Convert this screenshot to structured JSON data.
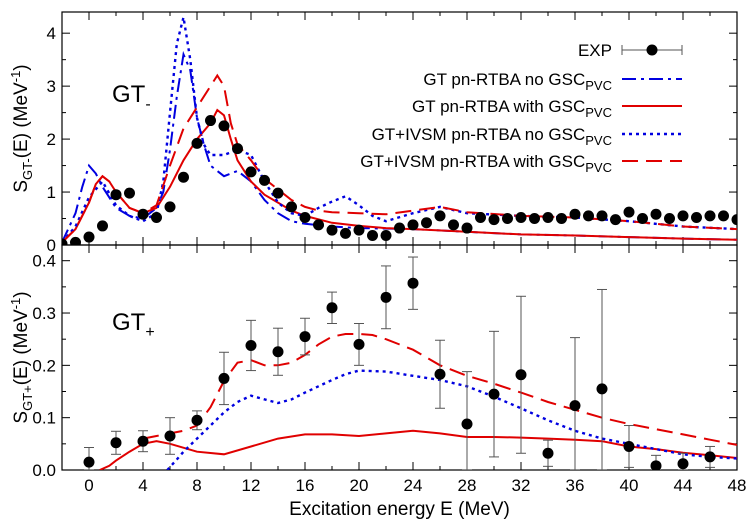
{
  "chart_data": {
    "type": "line",
    "x_axis": {
      "label": "Excitation energy E (MeV)",
      "xlim": [
        -2,
        48
      ],
      "ticks": [
        0,
        4,
        8,
        12,
        16,
        20,
        24,
        28,
        32,
        36,
        40,
        44,
        48
      ]
    },
    "legend": {
      "placement": "top-right",
      "entries": [
        {
          "label_main": "EXP",
          "label_sub": "",
          "style": "points-errorbar",
          "color": "#000000"
        },
        {
          "label_main": "GT pn-RTBA no GSC",
          "label_sub": "PVC",
          "style": "dashdot",
          "color": "#0000e0"
        },
        {
          "label_main": "GT pn-RTBA with GSC",
          "label_sub": "PVC",
          "style": "solid",
          "color": "#e00000"
        },
        {
          "label_main": "GT+IVSM pn-RTBA no GSC",
          "label_sub": "PVC",
          "style": "dotted",
          "color": "#0000e0"
        },
        {
          "label_main": "GT+IVSM pn-RTBA with GSC",
          "label_sub": "PVC",
          "style": "dashed",
          "color": "#e00000"
        }
      ]
    },
    "panels": [
      {
        "id": "gt_minus",
        "tag_main": "GT",
        "tag_sub": "-",
        "ylabel_main": "S",
        "ylabel_sub": "GT-",
        "ylabel_rest": "(E) (MeV",
        "ylabel_sup": "-1",
        "ylabel_end": ")",
        "ylim": [
          0,
          4.4
        ],
        "yticks": [
          0,
          1,
          2,
          3,
          4
        ],
        "exp": {
          "x": [
            -2,
            -1,
            0,
            1,
            2,
            3,
            4,
            5,
            6,
            7,
            8,
            9,
            10,
            11,
            12,
            13,
            14,
            15,
            16,
            17,
            18,
            19,
            20,
            21,
            22,
            23,
            24,
            25,
            26,
            27,
            28,
            29,
            30,
            31,
            32,
            33,
            34,
            35,
            36,
            37,
            38,
            39,
            40,
            41,
            42,
            43,
            44,
            45,
            46,
            47,
            48
          ],
          "y": [
            0.02,
            0.05,
            0.15,
            0.36,
            0.95,
            0.98,
            0.58,
            0.52,
            0.72,
            1.28,
            1.92,
            2.35,
            2.25,
            1.82,
            1.38,
            1.22,
            0.98,
            0.72,
            0.52,
            0.38,
            0.28,
            0.22,
            0.28,
            0.18,
            0.18,
            0.32,
            0.38,
            0.42,
            0.55,
            0.38,
            0.32,
            0.52,
            0.48,
            0.5,
            0.52,
            0.5,
            0.52,
            0.5,
            0.58,
            0.55,
            0.55,
            0.48,
            0.62,
            0.5,
            0.58,
            0.5,
            0.55,
            0.52,
            0.55,
            0.55,
            0.48
          ]
        },
        "series": [
          {
            "style": "dashdot",
            "color": "#0000e0",
            "x": [
              -2,
              -1,
              -0.5,
              0,
              0.5,
              1,
              2,
              3,
              4,
              5,
              5.5,
              6,
              6.5,
              7,
              7.5,
              8,
              8.5,
              9,
              10,
              11,
              12,
              13,
              14,
              15,
              16,
              18,
              20,
              24,
              28,
              32,
              36,
              40,
              44,
              48
            ],
            "y": [
              0.05,
              0.6,
              1.1,
              1.5,
              1.35,
              1.1,
              0.7,
              0.55,
              0.5,
              0.7,
              1.0,
              1.8,
              2.8,
              3.6,
              3.3,
              2.4,
              1.9,
              1.5,
              1.3,
              1.4,
              1.2,
              0.85,
              0.6,
              0.45,
              0.4,
              0.35,
              0.32,
              0.3,
              0.25,
              0.2,
              0.18,
              0.15,
              0.12,
              0.1
            ]
          },
          {
            "style": "solid",
            "color": "#e00000",
            "x": [
              -2,
              -1,
              0,
              0.5,
              1,
              1.5,
              2,
              3,
              4,
              5,
              6,
              7,
              8,
              9,
              9.5,
              10,
              10.5,
              11,
              12,
              13,
              14,
              15,
              16,
              18,
              20,
              22,
              24,
              28,
              32,
              36,
              40,
              44,
              48
            ],
            "y": [
              0.05,
              0.3,
              0.8,
              1.15,
              1.3,
              1.2,
              1.0,
              0.7,
              0.6,
              0.7,
              1.1,
              1.6,
              2.0,
              2.3,
              2.55,
              2.45,
              2.0,
              1.6,
              1.2,
              0.95,
              0.8,
              0.65,
              0.55,
              0.42,
              0.36,
              0.32,
              0.3,
              0.25,
              0.2,
              0.18,
              0.15,
              0.12,
              0.1
            ]
          },
          {
            "style": "dotted",
            "color": "#0000e0",
            "x": [
              -2,
              -1,
              0,
              1,
              2,
              3,
              4,
              5,
              5.5,
              6,
              6.5,
              7,
              7.5,
              8,
              8.5,
              9,
              10,
              11,
              12,
              13,
              14,
              15,
              16,
              17,
              18,
              19,
              20,
              21,
              22,
              24,
              26,
              28,
              32,
              36,
              40,
              44,
              48
            ],
            "y": [
              0.05,
              0.35,
              0.9,
              1.2,
              0.75,
              0.55,
              0.45,
              0.6,
              1.2,
              2.5,
              3.8,
              4.3,
              3.5,
              2.4,
              1.9,
              1.7,
              1.7,
              1.8,
              1.7,
              1.2,
              0.8,
              0.6,
              0.55,
              0.7,
              0.82,
              0.92,
              0.75,
              0.55,
              0.45,
              0.6,
              0.72,
              0.6,
              0.55,
              0.52,
              0.45,
              0.35,
              0.3
            ]
          },
          {
            "style": "dashed",
            "color": "#e00000",
            "x": [
              -2,
              -1,
              0,
              0.5,
              1,
              1.5,
              2,
              3,
              4,
              5,
              6,
              7,
              8,
              9,
              9.5,
              10,
              10.5,
              11,
              12,
              13,
              14,
              15,
              16,
              17,
              18,
              20,
              22,
              24,
              26,
              28,
              32,
              36,
              40,
              44,
              48
            ],
            "y": [
              0.05,
              0.3,
              0.8,
              1.15,
              1.3,
              1.2,
              1.0,
              0.7,
              0.6,
              0.75,
              1.5,
              2.2,
              2.6,
              3.0,
              3.2,
              3.0,
              2.3,
              1.9,
              1.6,
              1.25,
              1.05,
              0.85,
              0.72,
              0.65,
              0.62,
              0.6,
              0.58,
              0.65,
              0.72,
              0.62,
              0.55,
              0.52,
              0.45,
              0.35,
              0.3
            ]
          }
        ]
      },
      {
        "id": "gt_plus",
        "tag_main": "GT",
        "tag_sub": "+",
        "ylabel_main": "S",
        "ylabel_sub": "GT+",
        "ylabel_rest": "(E) (MeV",
        "ylabel_sup": "-1",
        "ylabel_end": ")",
        "ylim": [
          0,
          0.43
        ],
        "yticks": [
          0,
          0.1,
          0.2,
          0.3,
          0.4
        ],
        "ytick_labels": [
          "0.0",
          "0.1",
          "0.2",
          "0.3",
          "0.4"
        ],
        "exp": {
          "x": [
            0,
            2,
            4,
            6,
            8,
            10,
            12,
            14,
            16,
            18,
            20,
            22,
            24,
            26,
            28,
            30,
            32,
            34,
            36,
            38,
            40,
            42,
            44,
            46
          ],
          "y": [
            0.015,
            0.052,
            0.055,
            0.065,
            0.095,
            0.175,
            0.238,
            0.226,
            0.255,
            0.31,
            0.24,
            0.33,
            0.357,
            0.183,
            0.088,
            0.145,
            0.182,
            0.032,
            0.123,
            0.155,
            0.045,
            0.008,
            0.012,
            0.025
          ],
          "err": [
            0.028,
            0.022,
            0.02,
            0.035,
            0.018,
            0.05,
            0.048,
            0.045,
            0.035,
            0.03,
            0.04,
            0.06,
            0.05,
            0.065,
            0.1,
            0.12,
            0.15,
            0.025,
            0.13,
            0.19,
            0.04,
            0.02,
            0.02,
            0.02
          ]
        },
        "series": [
          {
            "style": "solid",
            "color": "#e00000",
            "x": [
              0.8,
              1.5,
              2,
              3,
              4,
              5,
              6,
              8,
              10,
              12,
              14,
              16,
              18,
              20,
              22,
              24,
              26,
              28,
              30,
              32,
              34,
              36,
              38,
              40,
              42,
              44,
              46,
              48
            ],
            "y": [
              0.0,
              0.008,
              0.018,
              0.035,
              0.05,
              0.055,
              0.05,
              0.035,
              0.03,
              0.045,
              0.06,
              0.068,
              0.068,
              0.065,
              0.07,
              0.075,
              0.07,
              0.063,
              0.063,
              0.062,
              0.06,
              0.058,
              0.055,
              0.045,
              0.04,
              0.033,
              0.028,
              0.023
            ]
          },
          {
            "style": "dotted",
            "color": "#0000e0",
            "x": [
              5.8,
              6.5,
              7,
              8,
              9,
              10,
              11,
              12,
              13,
              14,
              15,
              16,
              17,
              18,
              19,
              20,
              22,
              24,
              26,
              28,
              30,
              32,
              34,
              36,
              38,
              40,
              42,
              44,
              46,
              48
            ],
            "y": [
              0.0,
              0.02,
              0.035,
              0.06,
              0.085,
              0.11,
              0.13,
              0.142,
              0.135,
              0.128,
              0.135,
              0.148,
              0.16,
              0.172,
              0.183,
              0.19,
              0.188,
              0.18,
              0.172,
              0.16,
              0.14,
              0.118,
              0.095,
              0.075,
              0.06,
              0.05,
              0.04,
              0.03,
              0.025,
              0.022
            ]
          },
          {
            "style": "dashed",
            "color": "#e00000",
            "x": [
              4,
              5,
              6,
              7,
              8,
              9,
              10,
              11,
              12,
              13,
              14,
              15,
              16,
              17,
              18,
              19,
              20,
              21,
              22,
              24,
              26,
              28,
              30,
              32,
              34,
              36,
              38,
              40,
              42,
              44,
              46,
              48
            ],
            "y": [
              0.06,
              0.065,
              0.07,
              0.075,
              0.085,
              0.12,
              0.17,
              0.205,
              0.21,
              0.2,
              0.2,
              0.205,
              0.22,
              0.24,
              0.255,
              0.26,
              0.26,
              0.258,
              0.25,
              0.23,
              0.2,
              0.18,
              0.165,
              0.148,
              0.13,
              0.115,
              0.1,
              0.088,
              0.078,
              0.068,
              0.058,
              0.048
            ]
          }
        ]
      }
    ]
  }
}
